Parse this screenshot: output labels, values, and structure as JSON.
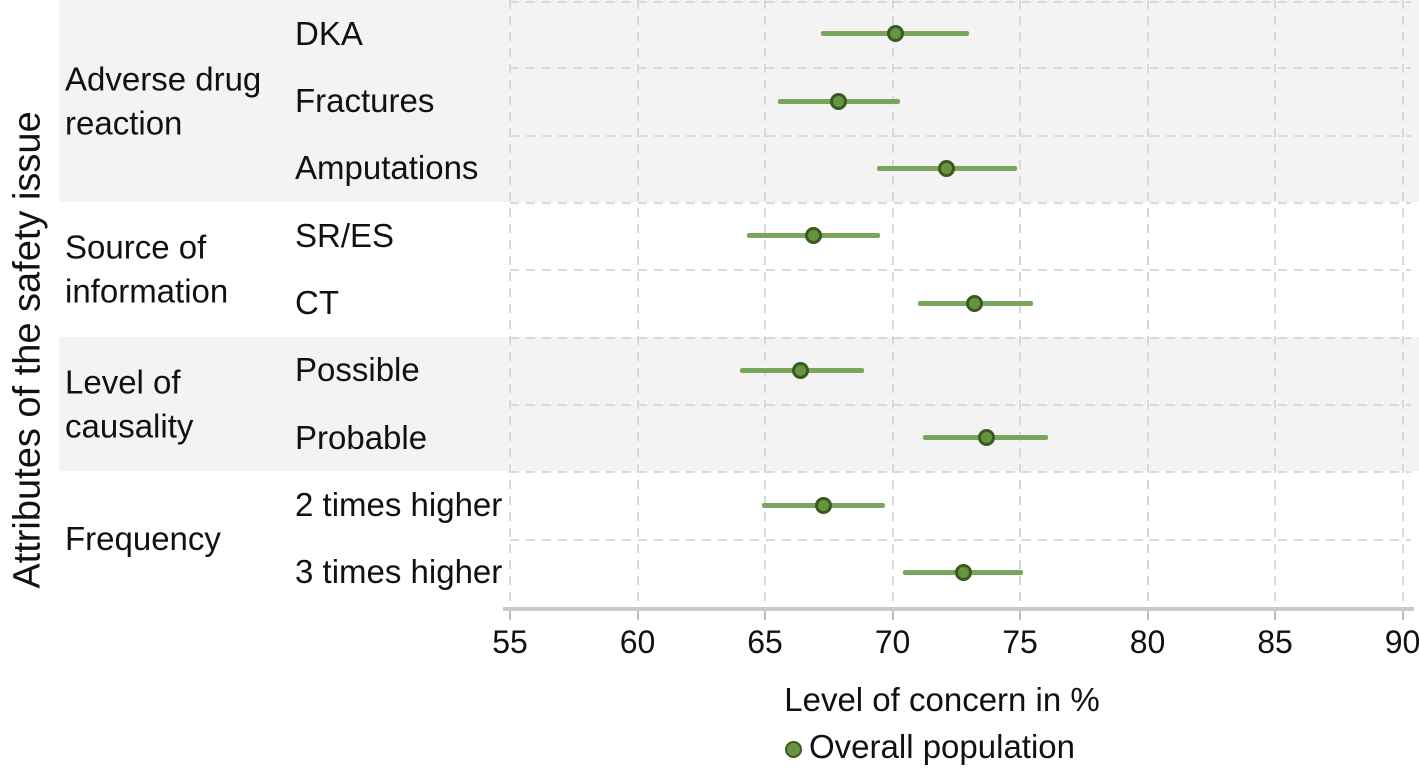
{
  "chart_data": {
    "type": "scatter",
    "subtype": "forest-plot-with-error-bars",
    "title": "",
    "xlabel": "Level of concern in %",
    "ylabel": "Attributes of the safety issue",
    "xlim": [
      55,
      90
    ],
    "xticks": [
      55,
      60,
      65,
      70,
      75,
      80,
      85,
      90
    ],
    "grid": "dashed",
    "legend_position": "bottom",
    "legend": [
      {
        "label": "Overall population"
      }
    ],
    "groups": [
      {
        "label": "Adverse drug reaction",
        "label_lines": [
          "Adverse drug",
          "reaction"
        ],
        "shaded": true,
        "items": [
          {
            "label": "DKA",
            "estimate": 70.1,
            "ci_low": 67.2,
            "ci_high": 73.0
          },
          {
            "label": "Fractures",
            "estimate": 67.9,
            "ci_low": 65.5,
            "ci_high": 70.3
          },
          {
            "label": "Amputations",
            "estimate": 72.1,
            "ci_low": 69.4,
            "ci_high": 74.9
          }
        ]
      },
      {
        "label": "Source of information",
        "label_lines": [
          "Source of",
          "information"
        ],
        "shaded": false,
        "items": [
          {
            "label": "SR/ES",
            "estimate": 66.9,
            "ci_low": 64.3,
            "ci_high": 69.5
          },
          {
            "label": "CT",
            "estimate": 73.2,
            "ci_low": 71.0,
            "ci_high": 75.5
          }
        ]
      },
      {
        "label": "Level of causality",
        "label_lines": [
          "Level of",
          "causality"
        ],
        "shaded": true,
        "items": [
          {
            "label": "Possible",
            "estimate": 66.4,
            "ci_low": 64.0,
            "ci_high": 68.9
          },
          {
            "label": "Probable",
            "estimate": 73.7,
            "ci_low": 71.2,
            "ci_high": 76.1
          }
        ]
      },
      {
        "label": "Frequency",
        "label_lines": [
          "Frequency"
        ],
        "shaded": false,
        "items": [
          {
            "label": "2 times higher",
            "estimate": 67.3,
            "ci_low": 64.9,
            "ci_high": 69.7
          },
          {
            "label": "3 times higher",
            "estimate": 72.8,
            "ci_low": 70.4,
            "ci_high": 75.1
          }
        ]
      }
    ],
    "colors": {
      "ci_line": "#7aa55c",
      "marker_fill": "#68943f",
      "marker_stroke": "#3b5a22",
      "band": "#f3f3f3",
      "grid": "#d9d9d9",
      "axis": "#c9c9c9",
      "text": "#111111"
    }
  }
}
